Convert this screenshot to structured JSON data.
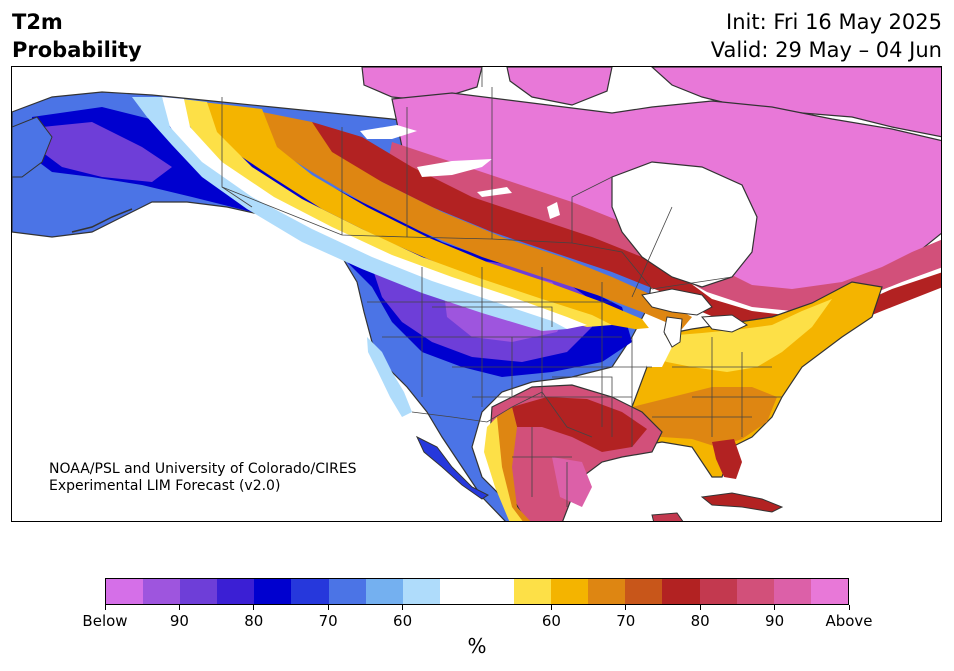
{
  "title": {
    "line1": "T2m",
    "line2": "Probability"
  },
  "dates": {
    "init": "Init: Fri 16 May 2025",
    "valid": "Valid: 29 May – 04 Jun"
  },
  "credit": {
    "line1": "NOAA/PSL and University of Colorado/CIRES",
    "line2": "Experimental LIM Forecast (v2.0)"
  },
  "colorbar": {
    "colors": [
      "#d56fe8",
      "#9e55de",
      "#6e3ed8",
      "#3b1fd4",
      "#0000cf",
      "#2638dc",
      "#4b74e6",
      "#74b0f0",
      "#afdcfb",
      "#ffffff",
      "#ffffff",
      "#fde047",
      "#f4b400",
      "#de8612",
      "#c8561a",
      "#b22222",
      "#c3394f",
      "#d2507a",
      "#dc60a8",
      "#e878d8"
    ],
    "labels": [
      "Below",
      "90",
      "80",
      "70",
      "60",
      "60",
      "70",
      "80",
      "90",
      "Above"
    ],
    "unit": "%"
  },
  "map": {
    "colors": {
      "deep_below": "#3b1fd4",
      "below": "#0000cf",
      "purple": "#6e3ed8",
      "violet": "#9e55de",
      "blue": "#4b74e6",
      "light_blue": "#74b0f0",
      "pale_blue": "#afdcfb",
      "yellow": "#fde047",
      "gold": "#f4b400",
      "orange": "#de8612",
      "rust": "#c8561a",
      "red": "#b22222",
      "crimson": "#c3394f",
      "rose": "#d2507a",
      "pink": "#dc60a8",
      "magenta": "#e878d8",
      "coast": "#333333",
      "border": "#444444"
    }
  }
}
